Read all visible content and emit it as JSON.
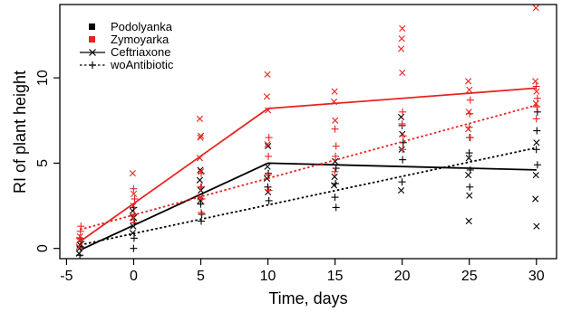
{
  "chart_data": {
    "type": "scatter",
    "xlabel": "Time, days",
    "ylabel": "RI of plant height",
    "xlim": [
      -5.5,
      31.5
    ],
    "ylim": [
      -0.6,
      14.3
    ],
    "x_ticks": [
      -5,
      0,
      5,
      10,
      15,
      20,
      25,
      30
    ],
    "y_ticks": [
      0,
      5,
      10
    ],
    "grid": false,
    "legend_position": "top-left",
    "legend": {
      "varieties": [
        {
          "name": "Podolyanka",
          "color": "#000000"
        },
        {
          "name": "Zymoyarka",
          "color": "#e8231f"
        }
      ],
      "treatments": [
        {
          "name": "Ceftriaxone",
          "marker": "x",
          "line": "solid"
        },
        {
          "name": "woAntibiotic",
          "marker": "+",
          "line": "dotted"
        }
      ]
    },
    "series": [
      {
        "name": "Podolyanka Ceftriaxone",
        "color": "#000000",
        "marker": "x",
        "line": "solid",
        "line_points": [
          [
            -4,
            -0.1
          ],
          [
            10,
            5.0
          ],
          [
            30,
            4.6
          ]
        ],
        "points": [
          [
            -4,
            -0.3
          ],
          [
            -4,
            0.0
          ],
          [
            -4,
            0.2
          ],
          [
            0,
            0.9
          ],
          [
            0,
            1.3
          ],
          [
            0,
            1.8
          ],
          [
            0,
            2.2
          ],
          [
            5,
            2.8
          ],
          [
            5,
            3.4
          ],
          [
            5,
            4.0
          ],
          [
            5,
            4.6
          ],
          [
            10,
            3.3
          ],
          [
            10,
            4.1
          ],
          [
            10,
            4.8
          ],
          [
            10,
            6.0
          ],
          [
            15,
            3.7
          ],
          [
            15,
            4.2
          ],
          [
            15,
            5.1
          ],
          [
            20,
            3.4
          ],
          [
            20,
            5.8
          ],
          [
            20,
            6.7
          ],
          [
            20,
            7.7
          ],
          [
            25,
            1.6
          ],
          [
            25,
            3.1
          ],
          [
            25,
            4.3
          ],
          [
            25,
            5.3
          ],
          [
            30,
            1.3
          ],
          [
            30,
            2.9
          ],
          [
            30,
            4.3
          ],
          [
            30,
            6.2
          ]
        ]
      },
      {
        "name": "Podolyanka woAntibiotic",
        "color": "#000000",
        "marker": "+",
        "line": "dotted",
        "line_points": [
          [
            -4,
            0.2
          ],
          [
            30,
            5.9
          ]
        ],
        "points": [
          [
            -4,
            -0.4
          ],
          [
            -4,
            0.1
          ],
          [
            -4,
            0.4
          ],
          [
            0,
            0.0
          ],
          [
            0,
            0.6
          ],
          [
            0,
            1.5
          ],
          [
            0,
            2.4
          ],
          [
            5,
            1.6
          ],
          [
            5,
            2.0
          ],
          [
            5,
            2.6
          ],
          [
            5,
            3.6
          ],
          [
            10,
            2.8
          ],
          [
            10,
            3.6
          ],
          [
            10,
            4.4
          ],
          [
            15,
            2.4
          ],
          [
            15,
            3.0
          ],
          [
            15,
            3.8
          ],
          [
            15,
            4.7
          ],
          [
            20,
            3.9
          ],
          [
            20,
            5.2
          ],
          [
            20,
            6.2
          ],
          [
            20,
            7.2
          ],
          [
            25,
            3.6
          ],
          [
            25,
            4.6
          ],
          [
            25,
            5.6
          ],
          [
            25,
            6.5
          ],
          [
            30,
            4.9
          ],
          [
            30,
            5.8
          ],
          [
            30,
            6.9
          ],
          [
            30,
            8.0
          ]
        ]
      },
      {
        "name": "Zymoyarka Ceftriaxone",
        "color": "#e8231f",
        "marker": "x",
        "line": "solid",
        "line_points": [
          [
            -4,
            0.4
          ],
          [
            10,
            8.2
          ],
          [
            30,
            9.4
          ]
        ],
        "points": [
          [
            -4,
            0.1
          ],
          [
            -4,
            0.5
          ],
          [
            -4,
            0.7
          ],
          [
            0,
            1.8
          ],
          [
            0,
            2.5
          ],
          [
            0,
            3.2
          ],
          [
            0,
            4.4
          ],
          [
            5,
            3.0
          ],
          [
            5,
            4.5
          ],
          [
            5,
            5.3
          ],
          [
            5,
            6.5
          ],
          [
            5,
            6.6
          ],
          [
            5,
            7.6
          ],
          [
            10,
            6.1
          ],
          [
            10,
            8.1
          ],
          [
            10,
            8.9
          ],
          [
            10,
            10.2
          ],
          [
            15,
            7.5
          ],
          [
            15,
            8.6
          ],
          [
            15,
            9.2
          ],
          [
            20,
            10.3
          ],
          [
            20,
            11.7
          ],
          [
            20,
            12.3
          ],
          [
            20,
            12.9
          ],
          [
            25,
            7.0
          ],
          [
            25,
            8.0
          ],
          [
            25,
            9.3
          ],
          [
            25,
            9.8
          ],
          [
            30,
            8.5
          ],
          [
            30,
            9.2
          ],
          [
            30,
            9.8
          ],
          [
            30,
            14.1
          ]
        ]
      },
      {
        "name": "Zymoyarka woAntibiotic",
        "color": "#e8231f",
        "marker": "+",
        "line": "dotted",
        "line_points": [
          [
            -4,
            1.1
          ],
          [
            30,
            8.4
          ]
        ],
        "points": [
          [
            -4,
            0.6
          ],
          [
            -4,
            1.0
          ],
          [
            -4,
            1.3
          ],
          [
            0,
            1.5
          ],
          [
            0,
            2.0
          ],
          [
            0,
            2.9
          ],
          [
            0,
            3.5
          ],
          [
            5,
            2.1
          ],
          [
            5,
            2.9
          ],
          [
            5,
            3.6
          ],
          [
            5,
            4.4
          ],
          [
            10,
            3.4
          ],
          [
            10,
            4.3
          ],
          [
            10,
            5.4
          ],
          [
            10,
            6.5
          ],
          [
            15,
            4.5
          ],
          [
            15,
            5.4
          ],
          [
            15,
            6.0
          ],
          [
            15,
            7.0
          ],
          [
            20,
            5.8
          ],
          [
            20,
            6.6
          ],
          [
            20,
            7.3
          ],
          [
            20,
            8.0
          ],
          [
            25,
            6.5
          ],
          [
            25,
            7.1
          ],
          [
            25,
            7.9
          ],
          [
            25,
            8.7
          ],
          [
            30,
            7.6
          ],
          [
            30,
            8.3
          ],
          [
            30,
            8.8
          ],
          [
            30,
            9.5
          ]
        ]
      }
    ]
  }
}
